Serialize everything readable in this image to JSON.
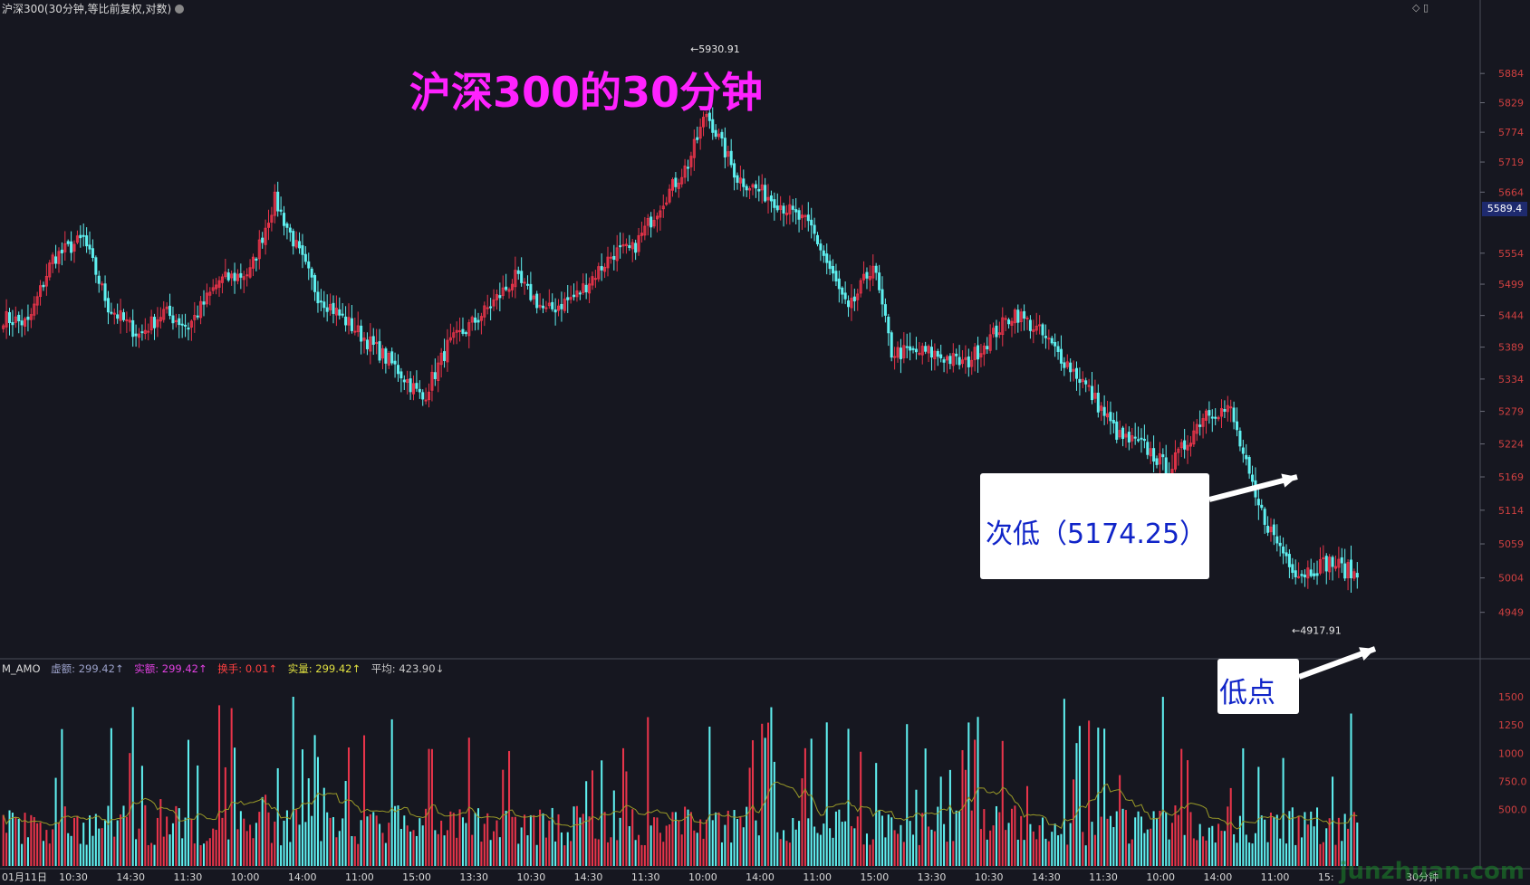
{
  "header": {
    "title": "沪深300(30分钟,等比前复权,对数)"
  },
  "annotation_title": "沪深300的30分钟",
  "callouts": [
    {
      "label": "次低（5174.25）"
    },
    {
      "label": "低点"
    }
  ],
  "current_price_tag": "5589.4",
  "indicator": {
    "name": "M_AMO",
    "items": [
      {
        "text": "虚额: 299.42↑",
        "color": "#9aa0c8"
      },
      {
        "text": "实额: 299.42↑",
        "color": "#e040e0"
      },
      {
        "text": "换手: 0.01↑",
        "color": "#ff4040"
      },
      {
        "text": "实量: 299.42↑",
        "color": "#e0e040"
      },
      {
        "text": "平均: 423.90↓",
        "color": "#c8c8c8"
      }
    ]
  },
  "watermark": "junzhuan.com",
  "colors": {
    "up": "#e8344a",
    "down": "#5ff0f0",
    "ma": "#9a9a28",
    "grid": "#2a2c38",
    "axis_text": "#d04040"
  },
  "chart_data": {
    "type": "candlestick",
    "title": "",
    "y_scale": "log",
    "ylim": [
      4880,
      6000
    ],
    "y_ticks": [
      5884,
      5829,
      5774,
      5719,
      5664,
      5554,
      5499,
      5444,
      5389,
      5334,
      5279,
      5224,
      5169,
      5114,
      5059,
      5004,
      4949
    ],
    "extremes": [
      {
        "label": "5930.91",
        "value": 5930.91,
        "kind": "high"
      },
      {
        "label": "4917.91",
        "value": 4917.91,
        "kind": "low"
      }
    ],
    "x_ticks": [
      "01月11日",
      "10:30",
      "14:30",
      "11:30",
      "10:00",
      "14:00",
      "11:00",
      "15:00",
      "13:30",
      "10:30",
      "14:30",
      "11:30",
      "10:00",
      "14:00",
      "11:00",
      "15:00",
      "13:30",
      "10:30",
      "14:30",
      "11:30",
      "10:00",
      "14:00",
      "11:00",
      "15:"
    ],
    "x_suffix": "30分钟",
    "volume_ticks": [
      "1500",
      "1250",
      "1000",
      "750.0",
      "500.0"
    ],
    "volume_max": 1700,
    "anchors": [
      [
        0,
        5440
      ],
      [
        8,
        5430
      ],
      [
        16,
        5545
      ],
      [
        26,
        5580
      ],
      [
        34,
        5460
      ],
      [
        44,
        5410
      ],
      [
        52,
        5450
      ],
      [
        60,
        5425
      ],
      [
        70,
        5505
      ],
      [
        80,
        5520
      ],
      [
        88,
        5650
      ],
      [
        102,
        5480
      ],
      [
        118,
        5400
      ],
      [
        128,
        5350
      ],
      [
        136,
        5300
      ],
      [
        144,
        5390
      ],
      [
        156,
        5450
      ],
      [
        166,
        5510
      ],
      [
        176,
        5450
      ],
      [
        186,
        5480
      ],
      [
        198,
        5555
      ],
      [
        204,
        5560
      ],
      [
        214,
        5650
      ],
      [
        222,
        5715
      ],
      [
        228,
        5810
      ],
      [
        238,
        5690
      ],
      [
        250,
        5650
      ],
      [
        262,
        5600
      ],
      [
        274,
        5450
      ],
      [
        282,
        5535
      ],
      [
        288,
        5380
      ],
      [
        300,
        5380
      ],
      [
        312,
        5360
      ],
      [
        328,
        5450
      ],
      [
        336,
        5415
      ],
      [
        350,
        5330
      ],
      [
        362,
        5235
      ],
      [
        370,
        5220
      ],
      [
        378,
        5180
      ],
      [
        390,
        5280
      ],
      [
        398,
        5280
      ],
      [
        406,
        5130
      ],
      [
        412,
        5070
      ],
      [
        420,
        5010
      ],
      [
        430,
        5030
      ],
      [
        438,
        5010
      ]
    ]
  }
}
